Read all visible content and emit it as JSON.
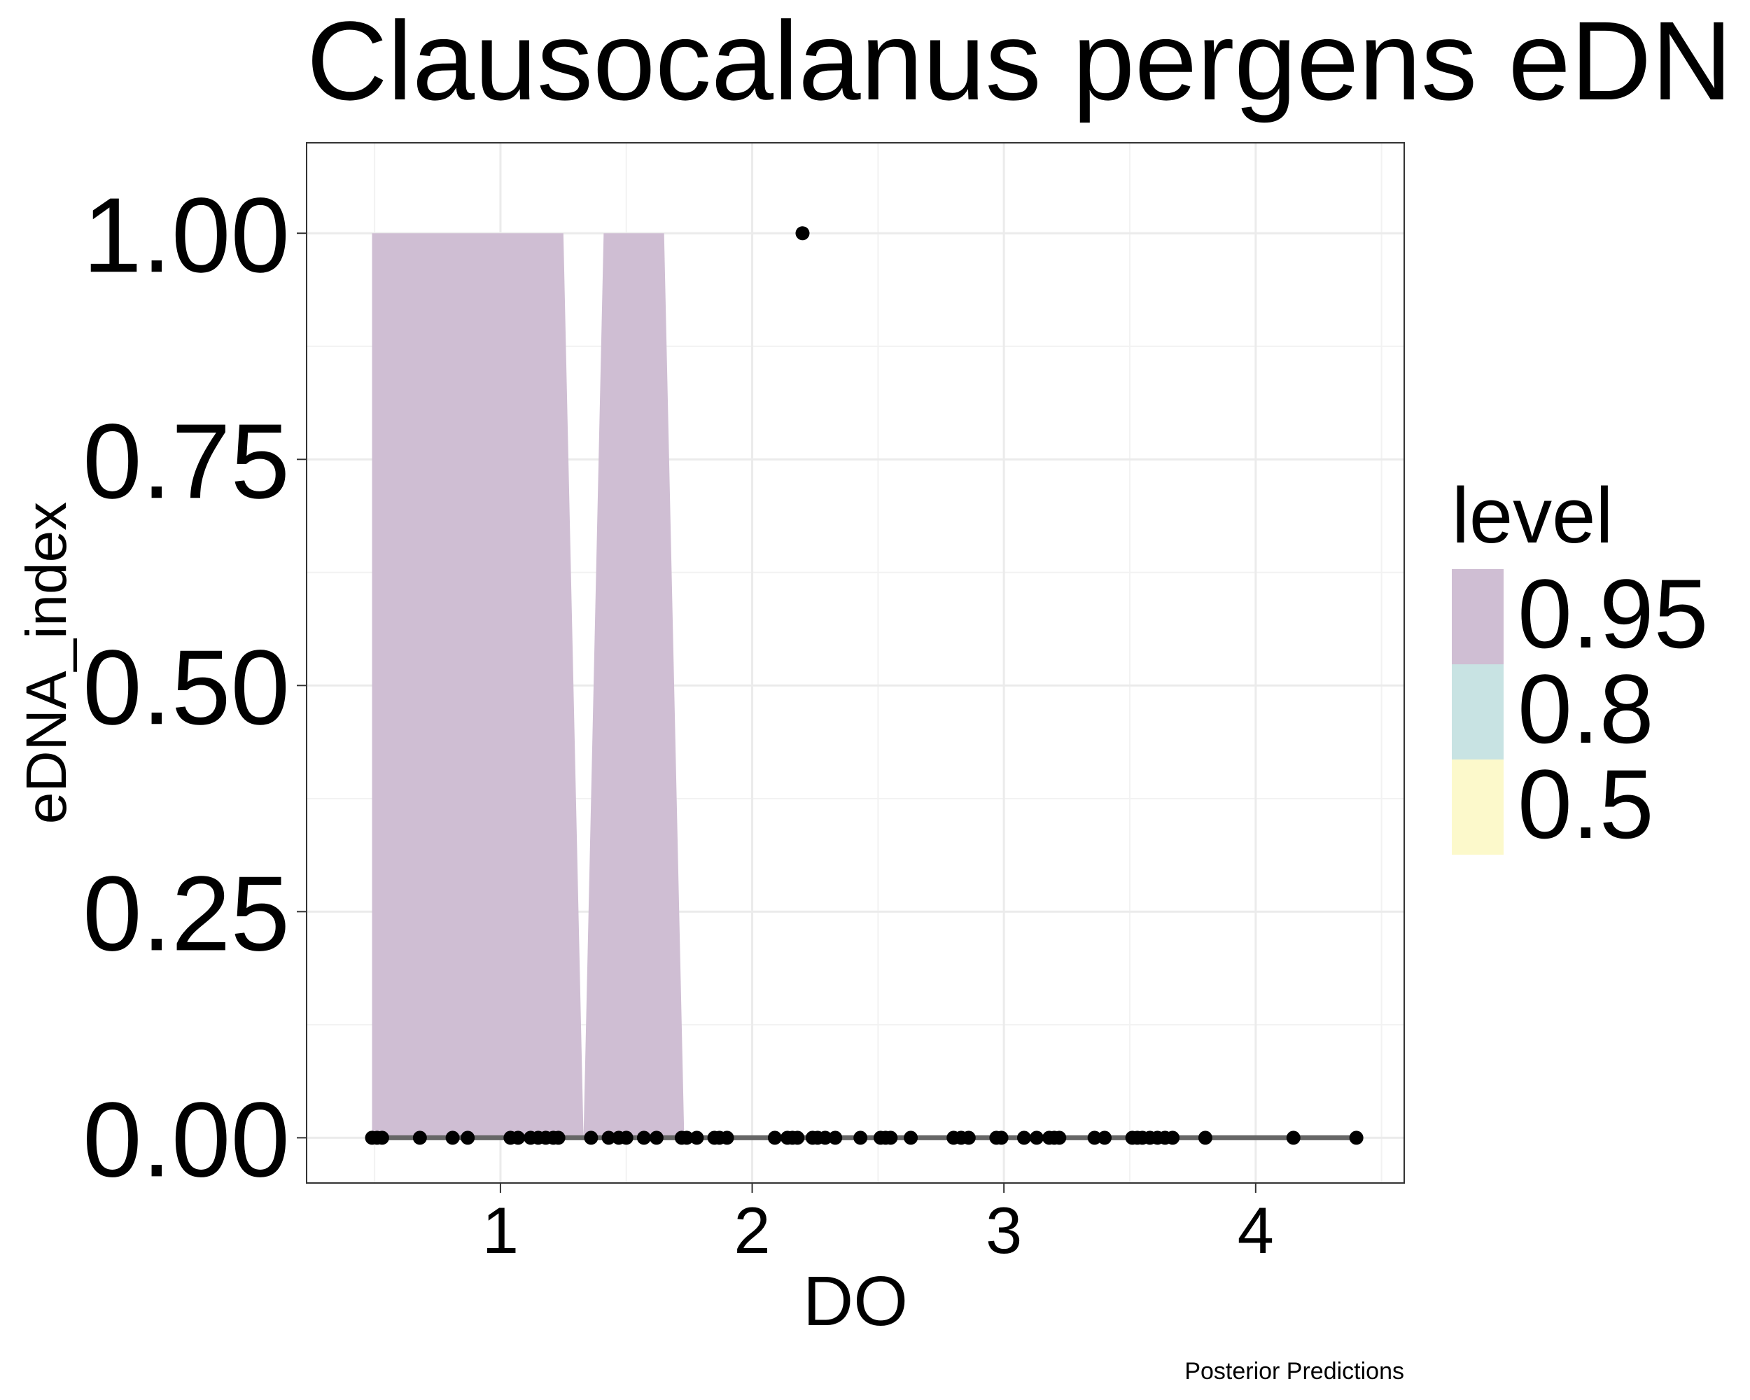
{
  "chart_data": {
    "type": "scatter",
    "title": "Clausocalanus pergens eDN",
    "xlabel": "DO",
    "ylabel": "eDNA_index",
    "caption": "Posterior Predictions",
    "xlim": [
      0.23,
      4.59
    ],
    "ylim": [
      -0.05,
      1.1
    ],
    "x_ticks": [
      1,
      2,
      3,
      4
    ],
    "x_tick_labels": [
      "1",
      "2",
      "3",
      "4"
    ],
    "y_ticks": [
      0,
      0.25,
      0.5,
      0.75,
      1
    ],
    "y_tick_labels": [
      "0.00",
      "0.25",
      "0.50",
      "0.75",
      "1.00"
    ],
    "grid": true,
    "legend": {
      "title": "level",
      "position": "right",
      "entries": [
        {
          "label": "0.95",
          "color": "#cfbed3"
        },
        {
          "label": "0.8",
          "color": "#c8e3e3"
        },
        {
          "label": "0.5",
          "color": "#fcf9cb"
        }
      ]
    },
    "intervals": [
      {
        "level": "0.95",
        "color": "#cfbed3",
        "x": [
          0.49,
          1.25,
          1.33,
          1.41,
          1.65,
          1.73
        ],
        "upper": [
          1,
          1,
          0,
          1,
          1,
          0
        ],
        "lower": [
          0,
          0,
          0,
          0,
          0,
          0
        ]
      }
    ],
    "median_line": {
      "x": [
        0.49,
        4.41
      ],
      "y": [
        0,
        0
      ],
      "color": "#666666"
    },
    "points": {
      "color": "#000000",
      "x": [
        0.49,
        0.51,
        0.53,
        0.68,
        0.81,
        0.87,
        1.04,
        1.07,
        1.12,
        1.15,
        1.18,
        1.21,
        1.23,
        1.36,
        1.43,
        1.47,
        1.5,
        1.57,
        1.62,
        1.72,
        1.74,
        1.78,
        1.85,
        1.87,
        1.9,
        2.09,
        2.14,
        2.16,
        2.18,
        2.2,
        2.24,
        2.26,
        2.29,
        2.33,
        2.43,
        2.51,
        2.53,
        2.55,
        2.63,
        2.8,
        2.83,
        2.86,
        2.97,
        2.99,
        3.08,
        3.13,
        3.18,
        3.2,
        3.22,
        3.36,
        3.4,
        3.51,
        3.53,
        3.55,
        3.58,
        3.61,
        3.64,
        3.67,
        3.8,
        4.15,
        4.4
      ],
      "y": [
        0,
        0,
        0,
        0,
        0,
        0,
        0,
        0,
        0,
        0,
        0,
        0,
        0,
        0,
        0,
        0,
        0,
        0,
        0,
        0,
        0,
        0,
        0,
        0,
        0,
        0,
        0,
        0,
        0,
        1,
        0,
        0,
        0,
        0,
        0,
        0,
        0,
        0,
        0,
        0,
        0,
        0,
        0,
        0,
        0,
        0,
        0,
        0,
        0,
        0,
        0,
        0,
        0,
        0,
        0,
        0,
        0,
        0,
        0,
        0,
        0
      ]
    }
  }
}
